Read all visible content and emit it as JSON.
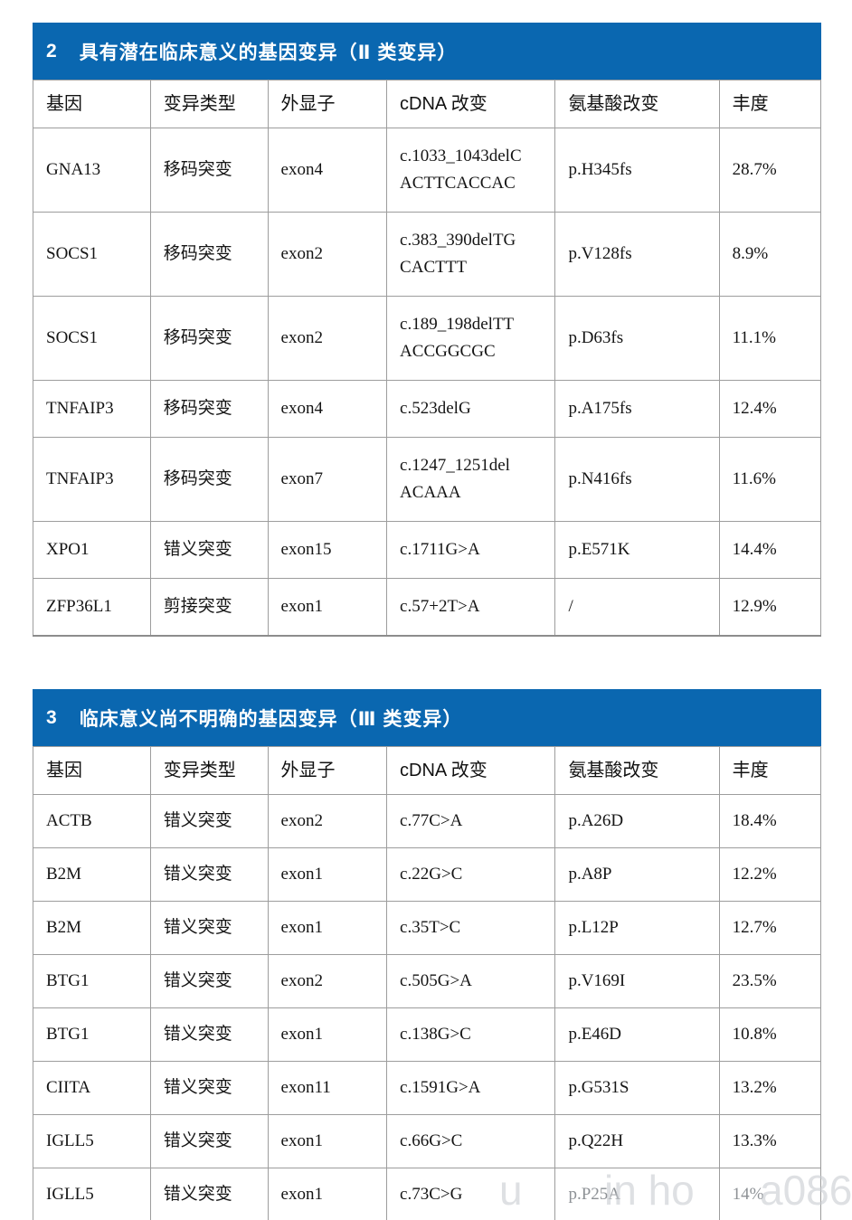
{
  "report": {
    "columns": [
      "基因",
      "变异类型",
      "外显子",
      "cDNA 改变",
      "氨基酸改变",
      "丰度"
    ],
    "sections": {
      "class2": {
        "number": "2",
        "title": "具有潜在临床意义的基因变异（Ⅱ 类变异）",
        "rows": [
          {
            "gene": "GNA13",
            "type": "移码突变",
            "exon": "exon4",
            "cdna": "c.1033_1043delCACTTCACCAC",
            "protein": "p.H345fs",
            "abundance": "28.7%"
          },
          {
            "gene": "SOCS1",
            "type": "移码突变",
            "exon": "exon2",
            "cdna": "c.383_390delTGCACTTT",
            "protein": "p.V128fs",
            "abundance": "8.9%"
          },
          {
            "gene": "SOCS1",
            "type": "移码突变",
            "exon": "exon2",
            "cdna": "c.189_198delTTACCGGCGC",
            "protein": "p.D63fs",
            "abundance": "11.1%"
          },
          {
            "gene": "TNFAIP3",
            "type": "移码突变",
            "exon": "exon4",
            "cdna": "c.523delG",
            "protein": "p.A175fs",
            "abundance": "12.4%"
          },
          {
            "gene": "TNFAIP3",
            "type": "移码突变",
            "exon": "exon7",
            "cdna": "c.1247_1251delACAAA",
            "protein": "p.N416fs",
            "abundance": "11.6%"
          },
          {
            "gene": "XPO1",
            "type": "错义突变",
            "exon": "exon15",
            "cdna": "c.1711G>A",
            "protein": "p.E571K",
            "abundance": "14.4%"
          },
          {
            "gene": "ZFP36L1",
            "type": "剪接突变",
            "exon": "exon1",
            "cdna": "c.57+2T>A",
            "protein": "/",
            "abundance": "12.9%"
          }
        ]
      },
      "class3": {
        "number": "3",
        "title": "临床意义尚不明确的基因变异（Ⅲ 类变异）",
        "rows": [
          {
            "gene": "ACTB",
            "type": "错义突变",
            "exon": "exon2",
            "cdna": "c.77C>A",
            "protein": "p.A26D",
            "abundance": "18.4%"
          },
          {
            "gene": "B2M",
            "type": "错义突变",
            "exon": "exon1",
            "cdna": "c.22G>C",
            "protein": "p.A8P",
            "abundance": "12.2%"
          },
          {
            "gene": "B2M",
            "type": "错义突变",
            "exon": "exon1",
            "cdna": "c.35T>C",
            "protein": "p.L12P",
            "abundance": "12.7%"
          },
          {
            "gene": "BTG1",
            "type": "错义突变",
            "exon": "exon2",
            "cdna": "c.505G>A",
            "protein": "p.V169I",
            "abundance": "23.5%"
          },
          {
            "gene": "BTG1",
            "type": "错义突变",
            "exon": "exon1",
            "cdna": "c.138G>C",
            "protein": "p.E46D",
            "abundance": "10.8%"
          },
          {
            "gene": "CIITA",
            "type": "错义突变",
            "exon": "exon11",
            "cdna": "c.1591G>A",
            "protein": "p.G531S",
            "abundance": "13.2%"
          },
          {
            "gene": "IGLL5",
            "type": "错义突变",
            "exon": "exon1",
            "cdna": "c.66G>C",
            "protein": "p.Q22H",
            "abundance": "13.3%"
          },
          {
            "gene": "IGLL5",
            "type": "错义突变",
            "exon": "exon1",
            "cdna": "c.73C>G",
            "protein": "p.P25A",
            "abundance": "14%",
            "faded": true
          }
        ]
      }
    },
    "watermark": {
      "fragments": [
        "u",
        "in ho",
        "a086"
      ]
    },
    "colors": {
      "section_header_bg": "#0a67b0",
      "section_header_text": "#ffffff",
      "table_border": "#9d9d9d",
      "body_text": "#151515",
      "faded_text": "#8d9195"
    }
  }
}
